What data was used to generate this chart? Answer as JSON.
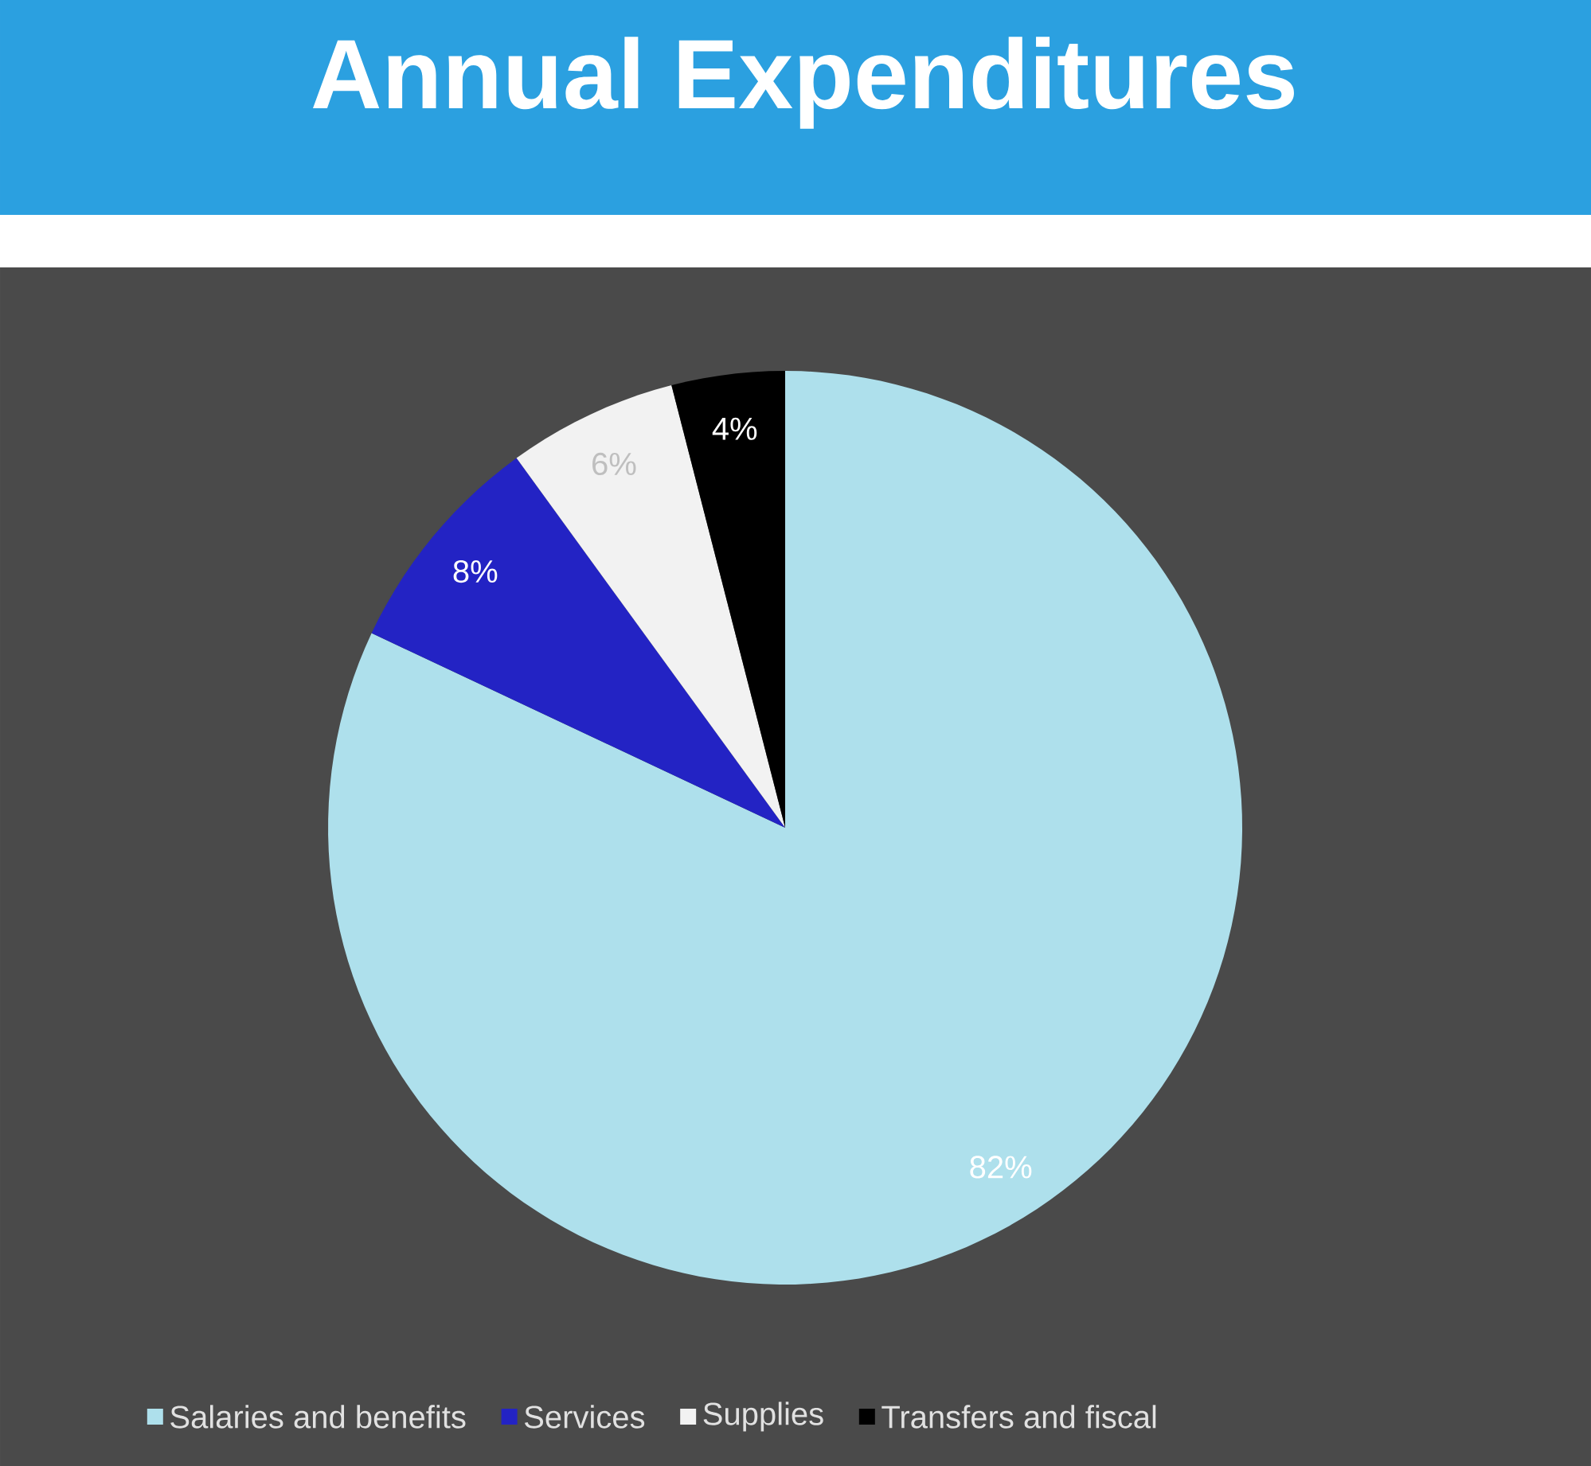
{
  "chart_data": {
    "type": "pie",
    "title": "Annual Expenditures",
    "categories": [
      "Salaries and benefits",
      "Services",
      "Supplies",
      "Transfers and fiscal"
    ],
    "values": [
      82,
      8,
      6,
      4
    ],
    "colors": [
      "#aee0ec",
      "#2323c4",
      "#f2f2f2",
      "#000000"
    ],
    "value_labels": [
      "82%",
      "8%",
      "6%",
      "4%"
    ],
    "legend": "bottom"
  }
}
